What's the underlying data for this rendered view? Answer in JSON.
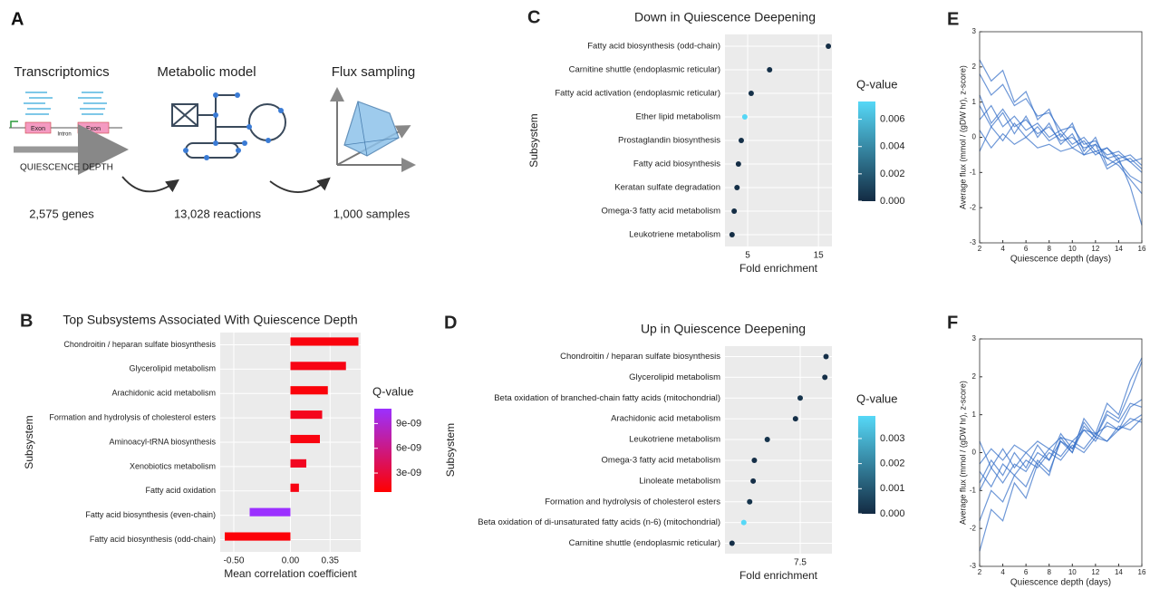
{
  "panel_a": {
    "label": "A",
    "steps": [
      {
        "title": "Transcriptomics",
        "count": "2,575 genes"
      },
      {
        "title": "Metabolic model",
        "count": "13,028 reactions"
      },
      {
        "title": "Flux sampling",
        "count": "1,000 samples"
      }
    ],
    "exon_labels": [
      "Exon",
      "Exon"
    ],
    "intron_label": "Intron",
    "axis_label": "QUIESCENCE DEPTH"
  },
  "chart_data": [
    {
      "type": "hbar",
      "panel_label": "B",
      "title": "Top Subsystems Associated With Quiescence Depth",
      "x_label": "Mean correlation coefficient",
      "y_label": "Subsystem",
      "categories": [
        "Chondroitin / heparan sulfate biosynthesis",
        "Glycerolipid metabolism",
        "Arachidonic acid metabolism",
        "Formation and hydrolysis of cholesterol esters",
        "Aminoacyl-tRNA biosynthesis",
        "Xenobiotics metabolism",
        "Fatty acid oxidation",
        "Fatty acid biosynthesis (even-chain)",
        "Fatty acid biosynthesis (odd-chain)"
      ],
      "values": [
        0.6,
        0.49,
        0.33,
        0.28,
        0.26,
        0.14,
        0.075,
        -0.36,
        -0.58
      ],
      "qvalues": [
        1.2e-09,
        1.5e-09,
        1.1e-09,
        1.8e-09,
        1.3e-09,
        2e-09,
        1.4e-09,
        1.08e-08,
        1e-09
      ],
      "xlim": [
        -0.62,
        0.62
      ],
      "xticks": [
        {
          "value": -0.5,
          "label": "-0.50"
        },
        {
          "value": 0,
          "label": "0.00"
        },
        {
          "value": 0.35,
          "label": "0.35"
        }
      ],
      "grid": true,
      "colorbar_title": "Q-value",
      "qlim": [
        7e-10,
        1.08e-08
      ],
      "qticks": [
        {
          "value": 3e-09,
          "label": "3e-09"
        },
        {
          "value": 6e-09,
          "label": "6e-09"
        },
        {
          "value": 9e-09,
          "label": "9e-09"
        }
      ],
      "color_low": "#ff0000",
      "color_high": "#9b30ff"
    },
    {
      "type": "dot",
      "panel_label": "C",
      "title": "Down in Quiescence Deepening",
      "x_label": "Fold enrichment",
      "y_label": "Subsystem",
      "categories": [
        "Fatty acid biosynthesis (odd-chain)",
        "Carnitine shuttle (endoplasmic reticular)",
        "Fatty acid activation (endoplasmic reticular)",
        "Ether lipid metabolism",
        "Prostaglandin biosynthesis",
        "Fatty acid biosynthesis",
        "Keratan sulfate degradation",
        "Omega-3 fatty acid metabolism",
        "Leukotriene metabolism"
      ],
      "values": [
        16.4,
        8.1,
        5.5,
        4.6,
        4.1,
        3.7,
        3.5,
        3.1,
        2.8
      ],
      "qvalues": [
        0.0001,
        0.0002,
        0.0003,
        0.0072,
        0.0002,
        0.0001,
        0.0002,
        0.0001,
        0.0001
      ],
      "xlim": [
        1.8,
        16.9
      ],
      "xticks": [
        5,
        15
      ],
      "grid": true,
      "colorbar_title": "Q-value",
      "qlim": [
        0,
        0.0073
      ],
      "qticks": [
        {
          "value": 0,
          "label": "0.000"
        },
        {
          "value": 0.002,
          "label": "0.002"
        },
        {
          "value": 0.004,
          "label": "0.004"
        },
        {
          "value": 0.006,
          "label": "0.006"
        }
      ],
      "color_low": "#132b43",
      "color_high": "#56d8f7"
    },
    {
      "type": "dot",
      "panel_label": "D",
      "title": "Up in Quiescence Deepening",
      "x_label": "Fold enrichment",
      "y_label": "Subsystem",
      "categories": [
        "Chondroitin / heparan sulfate biosynthesis",
        "Glycerolipid metabolism",
        "Beta oxidation of branched-chain fatty acids (mitochondrial)",
        "Arachidonic acid metabolism",
        "Leukotriene metabolism",
        "Omega-3 fatty acid metabolism",
        "Linoleate metabolism",
        "Formation and hydrolysis of cholesterol esters",
        "Beta oxidation of di-unsaturated fatty acids (n-6) (mitochondrial)",
        "Carnitine shuttle (endoplasmic reticular)"
      ],
      "values": [
        9.7,
        9.6,
        7.5,
        7.1,
        4.7,
        3.6,
        3.5,
        3.2,
        2.7,
        1.7
      ],
      "qvalues": [
        0.0001,
        0.0001,
        0.0002,
        0.0001,
        0.0002,
        0.0001,
        0.0001,
        0.0002,
        0.0039,
        0.0001
      ],
      "xlim": [
        1.1,
        10.2
      ],
      "xticks": [
        7.5
      ],
      "grid": true,
      "colorbar_title": "Q-value",
      "qlim": [
        0,
        0.0039
      ],
      "qticks": [
        {
          "value": 0,
          "label": "0.000"
        },
        {
          "value": 0.001,
          "label": "0.001"
        },
        {
          "value": 0.002,
          "label": "0.002"
        },
        {
          "value": 0.003,
          "label": "0.003"
        }
      ],
      "color_low": "#132b43",
      "color_high": "#56d8f7"
    },
    {
      "type": "line",
      "panel_label": "E",
      "x_label": "Quiescence depth (days)",
      "y_label": "Average flux (mmol / (gDW hr), z-score)",
      "x": [
        2,
        3,
        4,
        5,
        6,
        7,
        8,
        9,
        10,
        11,
        12,
        13,
        14,
        15,
        16
      ],
      "series": [
        {
          "color": "#2f6bc6",
          "values": [
            1.8,
            1.2,
            1.5,
            0.9,
            1.1,
            0.6,
            0.7,
            0.2,
            0.3,
            -0.2,
            -0.1,
            -0.6,
            -0.8,
            -1.2,
            -1.6
          ]
        },
        {
          "color": "#2f6bc6",
          "values": [
            0.5,
            0.9,
            0.3,
            0.6,
            0.2,
            0.4,
            0,
            0.2,
            -0.2,
            0,
            -0.4,
            -0.3,
            -0.6,
            -0.5,
            -0.8
          ]
        },
        {
          "color": "#2f6bc6",
          "values": [
            1.2,
            0.4,
            0.8,
            0.3,
            0.5,
            0.1,
            0.3,
            -0.1,
            0,
            -0.3,
            -0.2,
            -0.5,
            -0.4,
            -0.7,
            -1.0
          ]
        },
        {
          "color": "#2f6bc6",
          "values": [
            0.2,
            -0.3,
            0.1,
            -0.2,
            0,
            -0.3,
            -0.2,
            -0.4,
            -0.3,
            -0.5,
            -0.4,
            -0.6,
            -0.5,
            -0.7,
            -0.6
          ]
        },
        {
          "color": "#2f6bc6",
          "values": [
            2.2,
            1.6,
            1.9,
            1.0,
            1.3,
            0.5,
            0.8,
            0,
            0.4,
            -0.4,
            0,
            -0.8,
            -0.6,
            -1.4,
            -2.5
          ]
        },
        {
          "color": "#2f6bc6",
          "values": [
            -0.4,
            0.3,
            -0.1,
            0.4,
            0,
            0.3,
            -0.1,
            0.1,
            -0.3,
            -0.1,
            -0.5,
            -0.3,
            -0.7,
            -0.6,
            -0.9
          ]
        },
        {
          "color": "#2f6bc6",
          "values": [
            0.9,
            0.3,
            0.7,
            0.1,
            0.6,
            0,
            0.4,
            -0.2,
            0.1,
            -0.5,
            -0.2,
            -0.9,
            -0.7,
            -1.1,
            -1.3
          ]
        }
      ],
      "xlim": [
        2,
        16
      ],
      "xticks": [
        2,
        4,
        6,
        8,
        10,
        12,
        14,
        16
      ],
      "ylim": [
        -3,
        3
      ],
      "yticks": [
        -3,
        -2,
        -1,
        0,
        1,
        2,
        3
      ]
    },
    {
      "type": "line",
      "panel_label": "F",
      "x_label": "Quiescence depth (days)",
      "y_label": "Average flux (mmol / (gDW hr), z-score)",
      "x": [
        2,
        3,
        4,
        5,
        6,
        7,
        8,
        9,
        10,
        11,
        12,
        13,
        14,
        15,
        16
      ],
      "series": [
        {
          "color": "#2f6bc6",
          "values": [
            -1.8,
            -1.0,
            -1.3,
            -0.6,
            -0.9,
            -0.2,
            -0.5,
            0.3,
            0,
            0.7,
            0.4,
            1.1,
            0.9,
            1.6,
            2.4
          ]
        },
        {
          "color": "#2f6bc6",
          "values": [
            -0.5,
            -0.9,
            -0.3,
            -0.6,
            -0.2,
            -0.4,
            0,
            -0.2,
            0.2,
            0,
            0.4,
            0.3,
            0.6,
            0.8,
            1.0
          ]
        },
        {
          "color": "#2f6bc6",
          "values": [
            -1.0,
            -0.4,
            -0.8,
            -0.3,
            -0.5,
            0,
            -0.2,
            0.3,
            0.1,
            0.6,
            0.3,
            0.8,
            0.6,
            1.2,
            1.4
          ]
        },
        {
          "color": "#2f6bc6",
          "values": [
            -0.3,
            0.1,
            -0.2,
            0.2,
            0,
            0.3,
            0.1,
            0.4,
            0.3,
            0.6,
            0.5,
            0.7,
            0.6,
            0.9,
            0.8
          ]
        },
        {
          "color": "#2f6bc6",
          "values": [
            -2.6,
            -1.5,
            -1.8,
            -0.8,
            -1.2,
            -0.3,
            -0.6,
            0.4,
            0,
            0.9,
            0.5,
            1.3,
            1.0,
            1.9,
            2.5
          ]
        },
        {
          "color": "#2f6bc6",
          "values": [
            0.3,
            -0.4,
            0.1,
            -0.4,
            0,
            -0.3,
            0.1,
            -0.1,
            0.3,
            0.1,
            0.5,
            0.3,
            0.7,
            0.6,
            0.9
          ]
        },
        {
          "color": "#2f6bc6",
          "values": [
            -0.8,
            -0.2,
            -0.6,
            0,
            -0.4,
            0.2,
            -0.2,
            0.5,
            0.1,
            0.8,
            0.4,
            1.0,
            0.8,
            1.3,
            1.2
          ]
        }
      ],
      "xlim": [
        2,
        16
      ],
      "xticks": [
        2,
        4,
        6,
        8,
        10,
        12,
        14,
        16
      ],
      "ylim": [
        -3,
        3
      ],
      "yticks": [
        -3,
        -2,
        -1,
        0,
        1,
        2,
        3
      ]
    }
  ]
}
